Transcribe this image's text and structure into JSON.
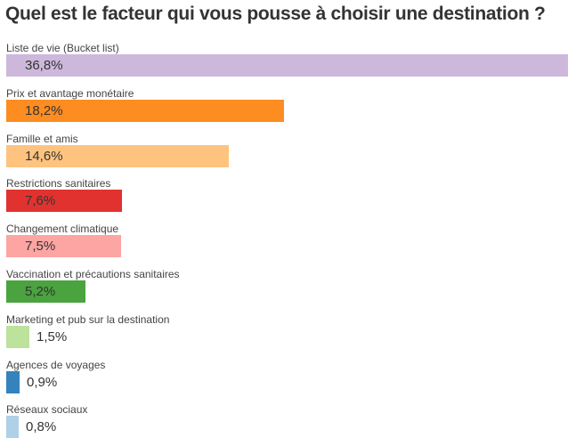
{
  "chart_data": {
    "type": "bar",
    "orientation": "horizontal",
    "title": "Quel est le facteur qui vous pousse à choisir une destination ?",
    "xlim": [
      0,
      36.8
    ],
    "categories": [
      "Liste de vie (Bucket list)",
      "Prix et avantage monétaire",
      "Famille et amis",
      "Restrictions sanitaires",
      "Changement climatique",
      "Vaccination et précautions sanitaires",
      "Marketing et pub sur la destination",
      "Agences de voyages",
      "Réseaux sociaux"
    ],
    "values": [
      36.8,
      18.2,
      14.6,
      7.6,
      7.5,
      5.2,
      1.5,
      0.9,
      0.8
    ],
    "value_labels": [
      "36,8%",
      "18,2%",
      "14,6%",
      "7,6%",
      "7,5%",
      "5,2%",
      "1,5%",
      "0,9%",
      "0,8%"
    ],
    "colors": [
      "#cdb8dc",
      "#fd8c21",
      "#fec47f",
      "#e2322f",
      "#fca5a3",
      "#4aa33e",
      "#bce29c",
      "#3583bd",
      "#afd0e7"
    ]
  }
}
